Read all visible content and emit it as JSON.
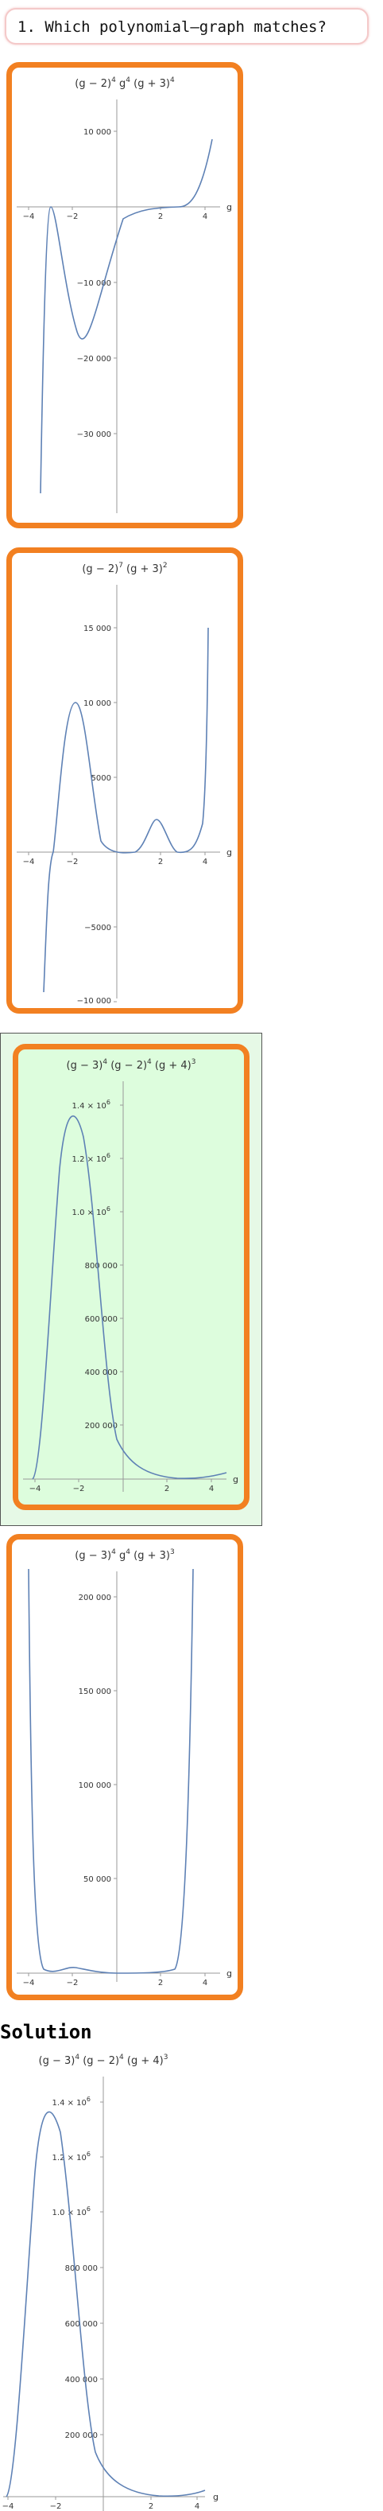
{
  "question": {
    "text": "1. Which polynomial–graph matches?"
  },
  "choices": [
    {
      "id": "a",
      "title_parts": [
        "(g − 2)",
        "4",
        " g",
        "4",
        " (g + 3)",
        "4"
      ],
      "y_ticks": [
        "10 000",
        "−10 000",
        "−20 000",
        "−30 000"
      ],
      "x_ticks": [
        "−4",
        "−2",
        "2",
        "4"
      ],
      "x_label": "g",
      "selected": false
    },
    {
      "id": "b",
      "title_parts": [
        "(g − 2)",
        "7",
        " (g + 3)",
        "2"
      ],
      "y_ticks": [
        "15 000",
        "10 000",
        "5000",
        "−5000",
        "−10 000"
      ],
      "x_ticks": [
        "−4",
        "−2",
        "2",
        "4"
      ],
      "x_label": "g",
      "selected": false
    },
    {
      "id": "c",
      "title_parts": [
        "(g − 3)",
        "4",
        " (g − 2)",
        "4",
        " (g + 4)",
        "3"
      ],
      "y_ticks": [
        "1.4 × 10",
        "1.2 × 10",
        "1.0 × 10",
        "800 000",
        "600 000",
        "400 000",
        "200 000"
      ],
      "y_tick_exp": "6",
      "x_ticks": [
        "−4",
        "−2",
        "2",
        "4"
      ],
      "x_label": "g",
      "selected": true
    },
    {
      "id": "d",
      "title_parts": [
        "(g − 3)",
        "4",
        " g",
        "4",
        " (g + 3)",
        "3"
      ],
      "y_ticks": [
        "200 000",
        "150 000",
        "100 000",
        "50 000"
      ],
      "x_ticks": [
        "−4",
        "−2",
        "2",
        "4"
      ],
      "x_label": "g",
      "selected": false
    }
  ],
  "solution": {
    "heading": "Solution",
    "title_parts": [
      "(g − 3)",
      "4",
      " (g − 2)",
      "4",
      " (g + 4)",
      "3"
    ],
    "y_ticks": [
      "1.4 × 10",
      "1.2 × 10",
      "1.0 × 10",
      "800 000",
      "600 000",
      "400 000",
      "200 000"
    ],
    "y_tick_exp": "6",
    "x_ticks": [
      "−4",
      "−2",
      "2",
      "4"
    ],
    "x_label": "g"
  },
  "colors": {
    "curve": "#5e81b5",
    "border": "#f28021",
    "selected_bg": "#ddfddd",
    "axis": "#999999"
  }
}
